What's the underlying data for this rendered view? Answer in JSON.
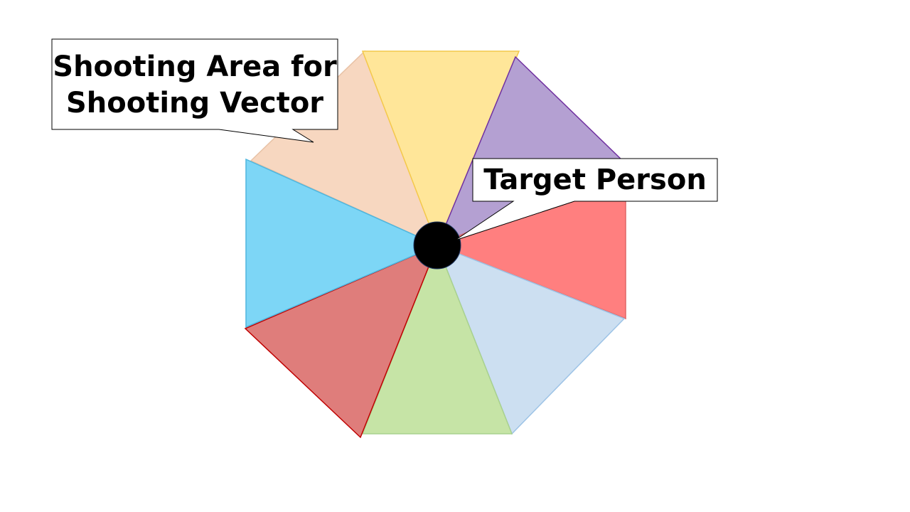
{
  "callouts": {
    "shooting_area_line1": "Shooting Area for",
    "shooting_area_line2": "Shooting Vector",
    "target_person": "Target Person"
  },
  "segments": [
    {
      "name": "segment-top",
      "fill": "#FFE699",
      "stroke": "#F4C84A"
    },
    {
      "name": "segment-top-right",
      "fill": "#B4A0D2",
      "stroke": "#7030A0"
    },
    {
      "name": "segment-right",
      "fill": "#FF7F7F",
      "stroke": "#E06666"
    },
    {
      "name": "segment-bottom-right",
      "fill": "#CCDFF1",
      "stroke": "#9DC3E6"
    },
    {
      "name": "segment-bottom",
      "fill": "#C6E4A6",
      "stroke": "#A9D18E"
    },
    {
      "name": "segment-bottom-left",
      "fill": "#DF7D7B",
      "stroke": "#C00000"
    },
    {
      "name": "segment-left",
      "fill": "#7DD6F6",
      "stroke": "#4FB6DE"
    },
    {
      "name": "segment-top-left",
      "fill": "#F7D7C0",
      "stroke": "#E8C2A6"
    }
  ],
  "target_person_color": "#000000"
}
